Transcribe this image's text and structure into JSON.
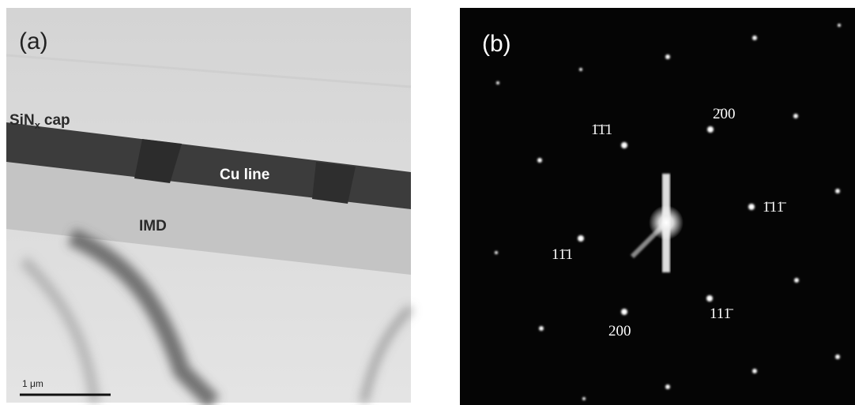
{
  "panel_a": {
    "label": "(a)",
    "cap_label": {
      "main": "SiN",
      "sub": "x",
      "rest": "cap"
    },
    "cu_label": "Cu line",
    "imd_label": "IMD",
    "scale_bar": "1 μm"
  },
  "panel_b": {
    "label": "(b)",
    "spots": [
      "1̄1̄1",
      "2̄00",
      "1̄11̄",
      "11̄1",
      "111̄",
      "200"
    ]
  }
}
